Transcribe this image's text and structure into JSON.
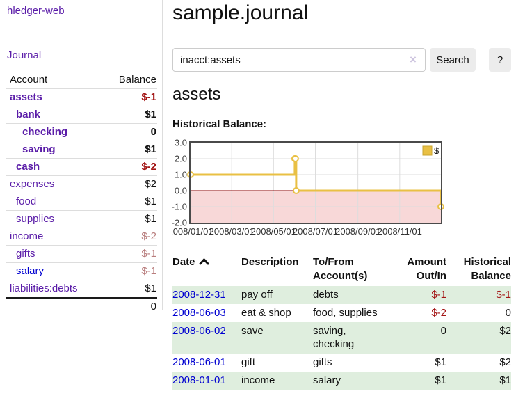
{
  "app": {
    "title": "hledger-web"
  },
  "sidebar": {
    "journal_link": "Journal",
    "accounts": {
      "headers": {
        "account": "Account",
        "balance": "Balance"
      },
      "rows": [
        {
          "account": "assets",
          "balance": "$-1",
          "indent": 1,
          "bold": true,
          "account_color": "purple",
          "balance_color": "negative"
        },
        {
          "account": "bank",
          "balance": "$1",
          "indent": 2,
          "bold": true,
          "account_color": "purple",
          "balance_color": "normal"
        },
        {
          "account": "checking",
          "balance": "0",
          "indent": 3,
          "bold": true,
          "account_color": "purple",
          "balance_color": "normal"
        },
        {
          "account": "saving",
          "balance": "$1",
          "indent": 3,
          "bold": true,
          "account_color": "purple",
          "balance_color": "normal"
        },
        {
          "account": "cash",
          "balance": "$-2",
          "indent": 2,
          "bold": true,
          "account_color": "purple",
          "balance_color": "negative"
        },
        {
          "account": "expenses",
          "balance": "$2",
          "indent": 1,
          "bold": false,
          "account_color": "purple",
          "balance_color": "normal"
        },
        {
          "account": "food",
          "balance": "$1",
          "indent": 2,
          "bold": false,
          "account_color": "purple",
          "balance_color": "normal"
        },
        {
          "account": "supplies",
          "balance": "$1",
          "indent": 2,
          "bold": false,
          "account_color": "purple",
          "balance_color": "normal"
        },
        {
          "account": "income",
          "balance": "$-2",
          "indent": 1,
          "bold": false,
          "account_color": "purple",
          "balance_color": "negative-muted"
        },
        {
          "account": "gifts",
          "balance": "$-1",
          "indent": 2,
          "bold": false,
          "account_color": "purple",
          "balance_color": "negative-muted"
        },
        {
          "account": "salary",
          "balance": "$-1",
          "indent": 2,
          "bold": false,
          "account_color": "blue",
          "balance_color": "negative-muted"
        },
        {
          "account": "liabilities:debts",
          "balance": "$1",
          "indent": 1,
          "bold": false,
          "account_color": "purple",
          "balance_color": "normal"
        }
      ],
      "total": "0"
    }
  },
  "header": {
    "title": "sample.journal"
  },
  "search": {
    "value": "inacct:assets",
    "clear_icon": "×",
    "button_label": "Search",
    "help_label": "?"
  },
  "register": {
    "account_heading": "assets",
    "chart_label": "Historical Balance:",
    "table": {
      "headers": {
        "date": "Date",
        "description": "Description",
        "tofrom": "To/From Account(s)",
        "amount": "Amount Out/In",
        "balance": "Historical Balance"
      },
      "sort": "date-ascending",
      "rows": [
        {
          "date": "2008-12-31",
          "description": "pay off",
          "tofrom": "debts",
          "amount": "$-1",
          "balance": "$-1",
          "amount_color": "negative",
          "balance_color": "negative"
        },
        {
          "date": "2008-06-03",
          "description": "eat & shop",
          "tofrom": "food, supplies",
          "amount": "$-2",
          "balance": "0",
          "amount_color": "negative",
          "balance_color": "normal"
        },
        {
          "date": "2008-06-02",
          "description": "save",
          "tofrom": "saving, checking",
          "amount": "0",
          "balance": "$2",
          "amount_color": "normal",
          "balance_color": "normal"
        },
        {
          "date": "2008-06-01",
          "description": "gift",
          "tofrom": "gifts",
          "amount": "$1",
          "balance": "$2",
          "amount_color": "normal",
          "balance_color": "normal"
        },
        {
          "date": "2008-01-01",
          "description": "income",
          "tofrom": "salary",
          "amount": "$1",
          "balance": "$1",
          "amount_color": "normal",
          "balance_color": "normal"
        }
      ]
    }
  },
  "chart_data": {
    "type": "line",
    "title": "Historical Balance:",
    "step": true,
    "series": [
      {
        "name": "$",
        "color": "#e9c044",
        "points": [
          [
            "2008-01-01",
            1
          ],
          [
            "2008-06-01",
            2
          ],
          [
            "2008-06-02",
            2
          ],
          [
            "2008-06-03",
            0
          ],
          [
            "2008-12-31",
            -1
          ]
        ]
      }
    ],
    "x_range": [
      "2008-01-01",
      "2008-12-31"
    ],
    "ylim": [
      -2,
      3
    ],
    "y_ticks": [
      "3.0",
      "2.0",
      "1.0",
      "0.0",
      "-1.0",
      "-2.0"
    ],
    "x_ticks": [
      "2008/01/01",
      "2008/03/01",
      "2008/05/01",
      "2008/07/01",
      "2008/09/01",
      "2008/11/01"
    ],
    "grid": true,
    "legend_position": "top-right",
    "negative_region_color": "#f8d8d8",
    "zero_line_color": "#8b0000",
    "border_color": "#4a4a4a",
    "grid_color": "#dddddd"
  },
  "colors": {
    "purple": "#5a1ca8",
    "blue": "#0000d0",
    "negative": "#a31414",
    "negative_muted": "#b97e7e",
    "stripe_green": "#dfeede",
    "chart_gold": "#e9c044"
  }
}
